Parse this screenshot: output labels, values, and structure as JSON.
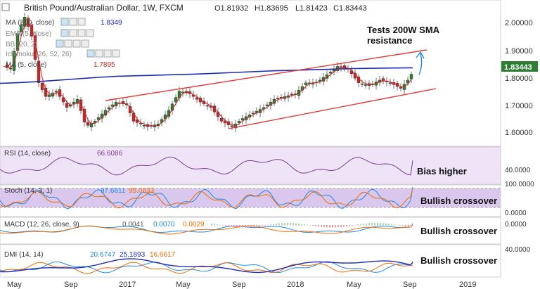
{
  "header": {
    "title": "British Pound/Australian Dollar, 1W, FXCM",
    "ohlc": [
      "O1.81932",
      "H1.83695",
      "L1.81423",
      "C1.83443"
    ]
  },
  "indicators": {
    "ma200_label": "MA (200, close)",
    "ma200_value": "1.8349",
    "ema_label": "EMA (5, close)",
    "bb_label": "BB (20, 2)",
    "ichimoku_label": "Ichimoku (26, 52, 26)",
    "ma5_label": "MA (5, close)",
    "ma5_value": "1.7895"
  },
  "annotations": {
    "sma_note_line1": "Tests 200W SMA",
    "sma_note_line2": "resistance",
    "rsi_note": "Bias higher",
    "stoch_note": "Bullish crossover",
    "macd_note": "Bullish crossover",
    "dmi_note": "Bullish crossover"
  },
  "panels": {
    "rsi": {
      "label": "RSI (14, close)",
      "value": "66.6086"
    },
    "stoch": {
      "label": "Stoch (14, 3, 1)",
      "k": "97.6811",
      "d": "95.0833"
    },
    "macd": {
      "label": "MACD (12, 26, close, 9)",
      "v1": "0.0041",
      "v2": "0.0070",
      "v3": "0.0029"
    },
    "dmi": {
      "label": "DMI (14, 14)",
      "v1": "20.6747",
      "v2": "25.1893",
      "v3": "16.6617"
    }
  },
  "price_label": "1.83443",
  "colors": {
    "up": "#2e7d32",
    "down": "#c62828",
    "ma200": "#1f2bb5",
    "trendline": "#e53935",
    "arrow": "#1e88e5",
    "rsi": "#7b3f8c",
    "price_tag": "#2e7d32"
  },
  "chart_data": [
    {
      "type": "candlestick",
      "title": "British Pound/Australian Dollar, 1W, FXCM",
      "y_ticks": [
        "2.00000",
        "1.90000",
        "1.80000",
        "1.70000",
        "1.60000"
      ],
      "ylim": [
        1.57,
        2.05
      ],
      "x_ticks": [
        "May",
        "Sep",
        "2017",
        "May",
        "Sep",
        "2018",
        "May",
        "Sep",
        "2019"
      ],
      "last_close": 1.83443,
      "ma200": [
        1.778,
        1.781,
        1.785,
        1.79,
        1.795,
        1.8,
        1.804,
        1.806,
        1.808,
        1.81,
        1.812,
        1.815,
        1.818,
        1.821,
        1.824,
        1.826,
        1.828,
        1.83,
        1.832,
        1.833,
        1.834,
        1.835
      ],
      "trendlines": {
        "upper": [
          [
            1.716,
            1.9
          ]
        ],
        "lower": [
          [
            1.612,
            1.755
          ]
        ]
      }
    },
    {
      "type": "line",
      "name": "RSI (14, close)",
      "y_ticks": [
        "40.0000"
      ],
      "last": 66.6086
    },
    {
      "type": "line",
      "name": "Stoch (14, 3, 1)",
      "y_ticks": [
        "100.0000",
        "0.0000"
      ],
      "k": 97.6811,
      "d": 95.0833
    },
    {
      "type": "line",
      "name": "MACD (12, 26, close, 9)",
      "y_ticks": [
        "0.0000"
      ],
      "values": [
        0.0041,
        0.007,
        0.0029
      ]
    },
    {
      "type": "line",
      "name": "DMI (14, 14)",
      "y_ticks": [
        "40.0000"
      ],
      "values": [
        20.6747,
        25.1893,
        16.6617
      ]
    }
  ]
}
